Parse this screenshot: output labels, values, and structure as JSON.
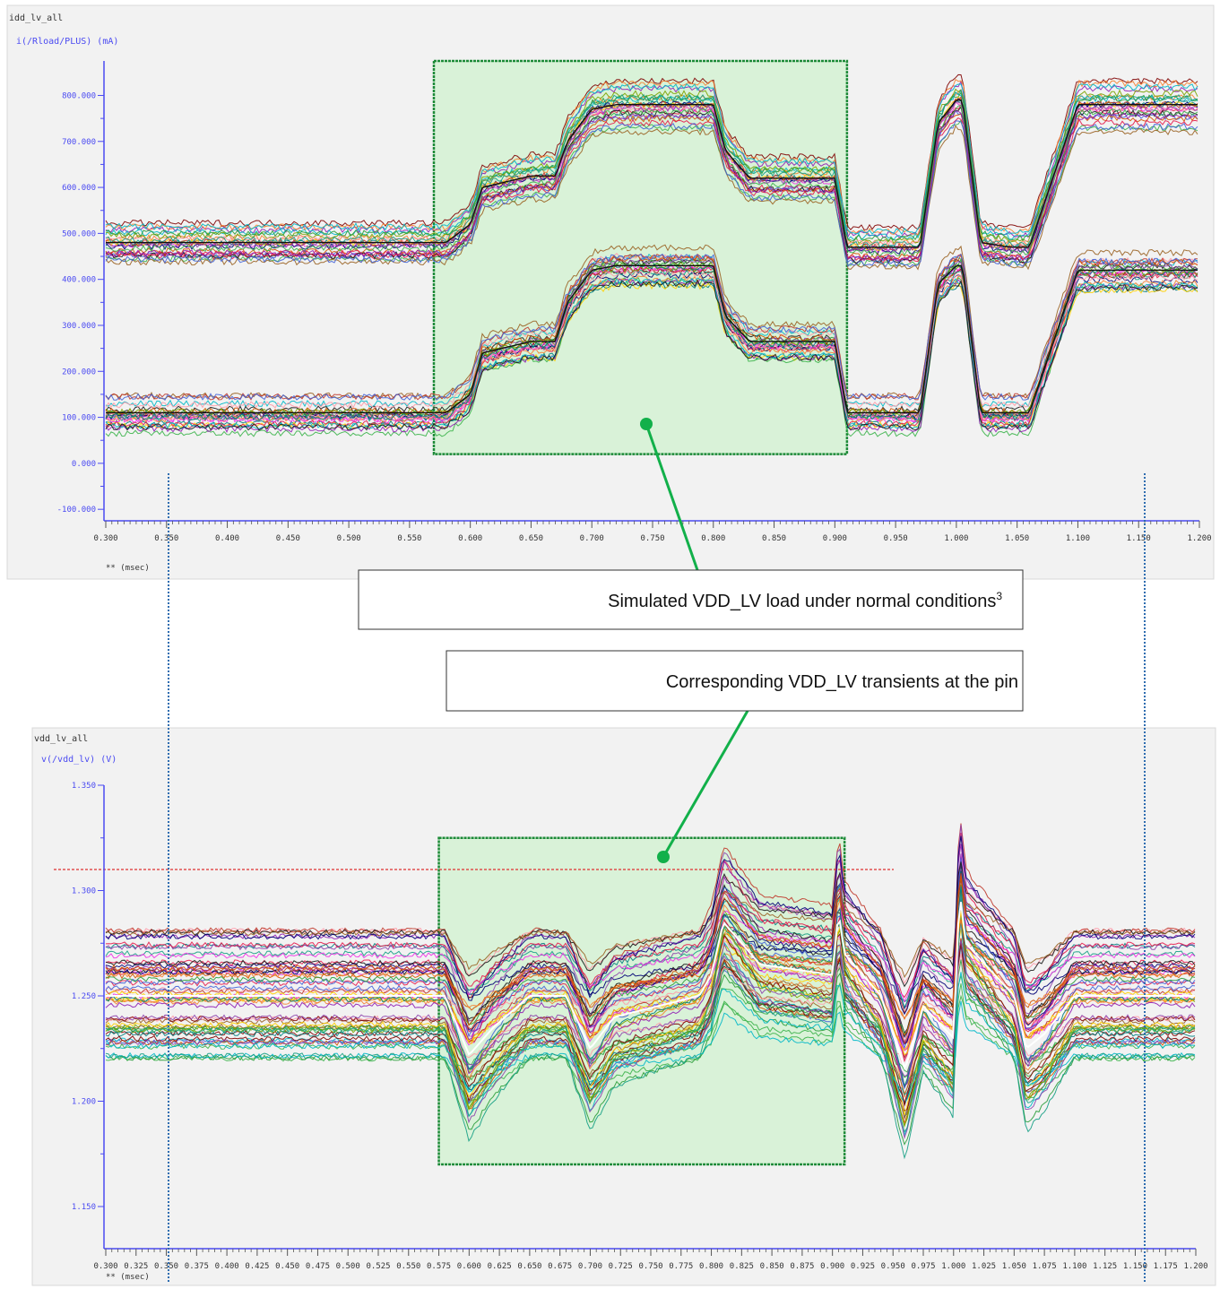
{
  "top_panel": {
    "name": "idd_lv_all",
    "signal": "i(/Rload/PLUS) (mA)",
    "unit_label": "** (msec)"
  },
  "bottom_panel": {
    "name": "vdd_lv_all",
    "signal": "v(/vdd_lv) (V)",
    "unit_label": "** (msec)"
  },
  "callouts": {
    "load": "Simulated VDD_LV load under normal conditions",
    "load_footnote": "3",
    "transients": "Corresponding VDD_LV transients at the pin"
  },
  "colors": {
    "axis": "#4a4af2",
    "highlight_fill": "#d9f2d8",
    "highlight_border": "#1c8a37",
    "callout_line": "#12b04a",
    "marker_line": "#2f6db0",
    "threshold_line": "#e03030",
    "panel_bg": "#f2f2f2"
  },
  "chart_data": [
    {
      "type": "line",
      "title": "idd_lv_all",
      "ylabel": "i(/Rload/PLUS) (mA)",
      "xlabel": "** (msec)",
      "xlim": [
        0.3,
        1.2
      ],
      "ylim": [
        -125,
        875
      ],
      "x_ticks": [
        "0.300",
        "0.350",
        "0.400",
        "0.450",
        "0.500",
        "0.550",
        "0.600",
        "0.650",
        "0.700",
        "0.750",
        "0.800",
        "0.850",
        "0.900",
        "0.950",
        "1.000",
        "1.050",
        "1.100",
        "1.150",
        "1.200"
      ],
      "y_ticks": [
        "-100.000",
        "0.000",
        "100.000",
        "200.000",
        "300.000",
        "400.000",
        "500.000",
        "600.000",
        "700.000",
        "800.000"
      ],
      "highlight_region": {
        "x": [
          0.57,
          0.91
        ],
        "y": [
          20,
          875
        ]
      },
      "series": [
        {
          "x": [
            0.3,
            0.58,
            0.6,
            0.61,
            0.65,
            0.67,
            0.68,
            0.7,
            0.72,
            0.8,
            0.81,
            0.83,
            0.9,
            0.91,
            0.94,
            0.97,
            0.985,
            1.0,
            1.005,
            1.02,
            1.045,
            1.06,
            1.1,
            1.2
          ],
          "values": [
            480,
            480,
            520,
            600,
            625,
            625,
            700,
            770,
            780,
            780,
            680,
            620,
            620,
            470,
            470,
            470,
            740,
            790,
            790,
            480,
            470,
            470,
            780,
            780
          ]
        },
        {
          "x": [
            0.3,
            0.58,
            0.6,
            0.61,
            0.65,
            0.67,
            0.68,
            0.7,
            0.72,
            0.8,
            0.81,
            0.83,
            0.9,
            0.91,
            0.94,
            0.97,
            0.985,
            1.0,
            1.005,
            1.02,
            1.045,
            1.06,
            1.1,
            1.2
          ],
          "values": [
            110,
            110,
            150,
            240,
            265,
            265,
            350,
            420,
            430,
            430,
            320,
            265,
            265,
            110,
            110,
            110,
            390,
            430,
            430,
            110,
            110,
            110,
            420,
            420
          ]
        }
      ]
    },
    {
      "type": "line",
      "title": "vdd_lv_all",
      "ylabel": "v(/vdd_lv) (V)",
      "xlabel": "** (msec)",
      "xlim": [
        0.3,
        1.2
      ],
      "ylim": [
        1.13,
        1.35
      ],
      "x_ticks": [
        "0.300",
        "0.325",
        "0.350",
        "0.375",
        "0.400",
        "0.425",
        "0.450",
        "0.475",
        "0.500",
        "0.525",
        "0.550",
        "0.575",
        "0.600",
        "0.625",
        "0.650",
        "0.675",
        "0.700",
        "0.725",
        "0.750",
        "0.775",
        "0.800",
        "0.825",
        "0.850",
        "0.875",
        "0.900",
        "0.925",
        "0.950",
        "0.975",
        "1.000",
        "1.025",
        "1.050",
        "1.075",
        "1.100",
        "1.125",
        "1.150",
        "1.175",
        "1.200"
      ],
      "y_ticks": [
        "1.150",
        "1.200",
        "1.250",
        "1.300",
        "1.350"
      ],
      "threshold": 1.31,
      "highlight_region": {
        "x": [
          0.575,
          0.91
        ],
        "y": [
          1.17,
          1.325
        ]
      },
      "series": [
        {
          "x": [
            0.3,
            0.57,
            0.58,
            0.6,
            0.62,
            0.65,
            0.68,
            0.7,
            0.72,
            0.79,
            0.8,
            0.81,
            0.84,
            0.9,
            0.905,
            0.91,
            0.94,
            0.96,
            0.975,
            1.0,
            1.005,
            1.01,
            1.05,
            1.06,
            1.075,
            1.1,
            1.2
          ],
          "values": [
            1.25,
            1.25,
            1.25,
            1.222,
            1.235,
            1.25,
            1.25,
            1.225,
            1.24,
            1.25,
            1.26,
            1.285,
            1.265,
            1.26,
            1.29,
            1.27,
            1.25,
            1.215,
            1.245,
            1.23,
            1.3,
            1.275,
            1.25,
            1.225,
            1.232,
            1.25,
            1.25
          ]
        }
      ]
    }
  ]
}
